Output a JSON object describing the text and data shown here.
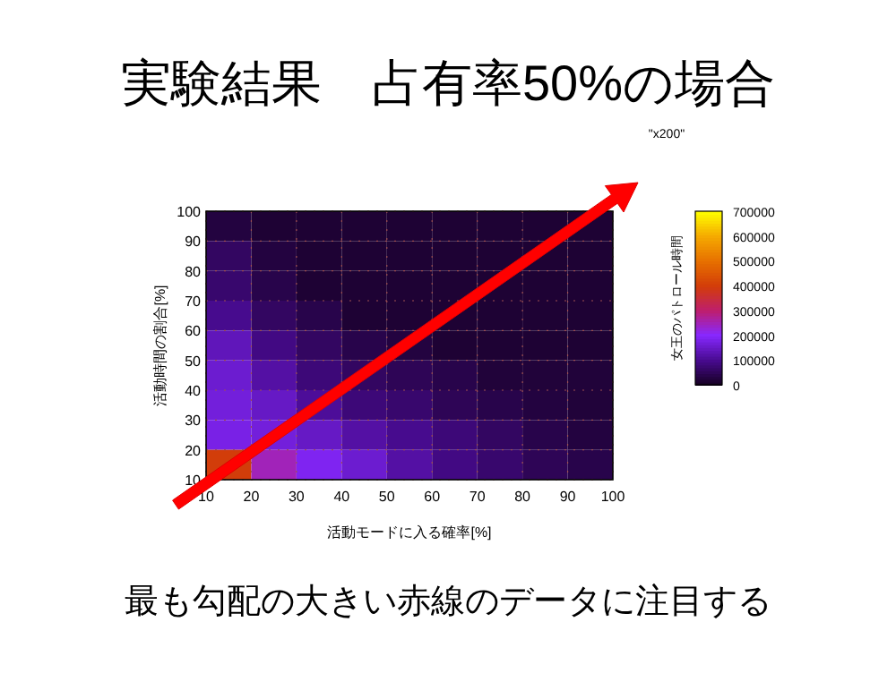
{
  "chart_data": {
    "type": "heatmap",
    "title": "実験結果　占有率50%の場合",
    "xlabel": "活動モードに入る確率[%]",
    "ylabel": "活動時間の割合[%]",
    "clabel": "女王のパトロール時間",
    "annotations": [
      "\"x200\"",
      "最も勾配の大きい赤線のデータに注目する"
    ],
    "cells": [
      [
        30000,
        20000,
        20000,
        20000,
        20000,
        20000,
        20000,
        20000,
        20000
      ],
      [
        60000,
        30000,
        20000,
        20000,
        20000,
        20000,
        20000,
        20000,
        20000
      ],
      [
        70000,
        40000,
        20000,
        20000,
        20000,
        20000,
        20000,
        20000,
        20000
      ],
      [
        100000,
        60000,
        40000,
        20000,
        20000,
        20000,
        20000,
        20000,
        20000
      ],
      [
        140000,
        90000,
        60000,
        40000,
        30000,
        20000,
        20000,
        20000,
        20000
      ],
      [
        160000,
        120000,
        80000,
        60000,
        50000,
        40000,
        25000,
        25000,
        25000
      ],
      [
        170000,
        150000,
        110000,
        80000,
        70000,
        50000,
        40000,
        30000,
        25000
      ],
      [
        180000,
        170000,
        150000,
        120000,
        100000,
        80000,
        60000,
        40000,
        30000
      ],
      [
        400000,
        250000,
        190000,
        160000,
        120000,
        90000,
        70000,
        50000,
        40000
      ]
    ],
    "xlim": [
      10,
      100
    ],
    "ylim": [
      10,
      100
    ],
    "xticks": [
      10,
      20,
      30,
      40,
      50,
      60,
      70,
      80,
      90,
      100
    ],
    "yticks": [
      10,
      20,
      30,
      40,
      50,
      60,
      70,
      80,
      90,
      100
    ],
    "clim": [
      0,
      700000
    ],
    "cticks": [
      0,
      100000,
      200000,
      300000,
      400000,
      500000,
      600000,
      700000
    ],
    "grid": true
  }
}
